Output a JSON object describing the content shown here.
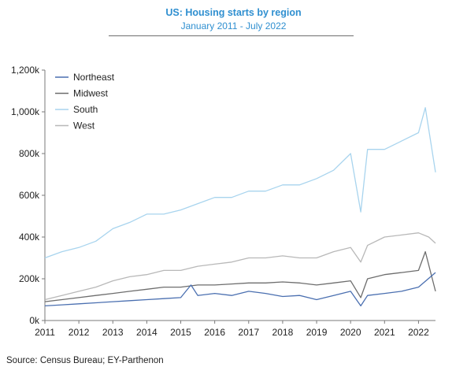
{
  "chart_data": {
    "type": "line",
    "title": "US: Housing starts by region",
    "subtitle": "January 2011 - July 2022",
    "source": "Source: Census Bureau; EY-Parthenon",
    "ylim": [
      0,
      1200
    ],
    "y_ticks": [
      0,
      200,
      400,
      600,
      800,
      1000,
      1200
    ],
    "y_tick_labels": [
      "0k",
      "200k",
      "400k",
      "600k",
      "800k",
      "1,000k",
      "1,200k"
    ],
    "x_ticks": [
      2011,
      2012,
      2013,
      2014,
      2015,
      2016,
      2017,
      2018,
      2019,
      2020,
      2021,
      2022
    ],
    "x_tick_labels": [
      "2011",
      "2012",
      "2013",
      "2014",
      "2015",
      "2016",
      "2017",
      "2018",
      "2019",
      "2020",
      "2021",
      "2022"
    ],
    "xlim": [
      2011.0,
      2022.5
    ],
    "grid": false,
    "legend_position": "top-left",
    "series": [
      {
        "name": "Northeast",
        "color": "#4a6fb0",
        "x": [
          2011.0,
          2011.5,
          2012.0,
          2012.5,
          2013.0,
          2013.5,
          2014.0,
          2014.5,
          2015.0,
          2015.3,
          2015.5,
          2016.0,
          2016.5,
          2017.0,
          2017.5,
          2018.0,
          2018.5,
          2019.0,
          2019.5,
          2020.0,
          2020.3,
          2020.5,
          2021.0,
          2021.5,
          2022.0,
          2022.5
        ],
        "values": [
          70,
          75,
          80,
          85,
          90,
          95,
          100,
          105,
          110,
          170,
          120,
          130,
          120,
          140,
          130,
          115,
          120,
          100,
          120,
          140,
          70,
          120,
          130,
          140,
          160,
          230
        ]
      },
      {
        "name": "Midwest",
        "color": "#6d6d6d",
        "x": [
          2011.0,
          2011.5,
          2012.0,
          2012.5,
          2013.0,
          2013.5,
          2014.0,
          2014.5,
          2015.0,
          2015.5,
          2016.0,
          2016.5,
          2017.0,
          2017.5,
          2018.0,
          2018.5,
          2019.0,
          2019.5,
          2020.0,
          2020.3,
          2020.5,
          2021.0,
          2021.5,
          2022.0,
          2022.2,
          2022.5
        ],
        "values": [
          90,
          100,
          110,
          120,
          130,
          140,
          150,
          160,
          160,
          170,
          170,
          175,
          180,
          180,
          185,
          180,
          170,
          180,
          190,
          110,
          200,
          220,
          230,
          240,
          330,
          140
        ]
      },
      {
        "name": "South",
        "color": "#a8d4ee",
        "x": [
          2011.0,
          2011.5,
          2012.0,
          2012.5,
          2013.0,
          2013.5,
          2014.0,
          2014.5,
          2015.0,
          2015.5,
          2016.0,
          2016.5,
          2017.0,
          2017.5,
          2018.0,
          2018.5,
          2019.0,
          2019.5,
          2020.0,
          2020.3,
          2020.5,
          2021.0,
          2021.5,
          2022.0,
          2022.2,
          2022.5
        ],
        "values": [
          300,
          330,
          350,
          380,
          440,
          470,
          510,
          510,
          530,
          560,
          590,
          590,
          620,
          620,
          650,
          650,
          680,
          720,
          800,
          520,
          820,
          820,
          860,
          900,
          1020,
          710
        ]
      },
      {
        "name": "West",
        "color": "#b8b8b8",
        "x": [
          2011.0,
          2011.5,
          2012.0,
          2012.5,
          2013.0,
          2013.5,
          2014.0,
          2014.5,
          2015.0,
          2015.5,
          2016.0,
          2016.5,
          2017.0,
          2017.5,
          2018.0,
          2018.5,
          2019.0,
          2019.5,
          2020.0,
          2020.3,
          2020.5,
          2021.0,
          2021.5,
          2022.0,
          2022.3,
          2022.5
        ],
        "values": [
          100,
          120,
          140,
          160,
          190,
          210,
          220,
          240,
          240,
          260,
          270,
          280,
          300,
          300,
          310,
          300,
          300,
          330,
          350,
          280,
          360,
          400,
          410,
          420,
          400,
          370
        ]
      }
    ]
  }
}
